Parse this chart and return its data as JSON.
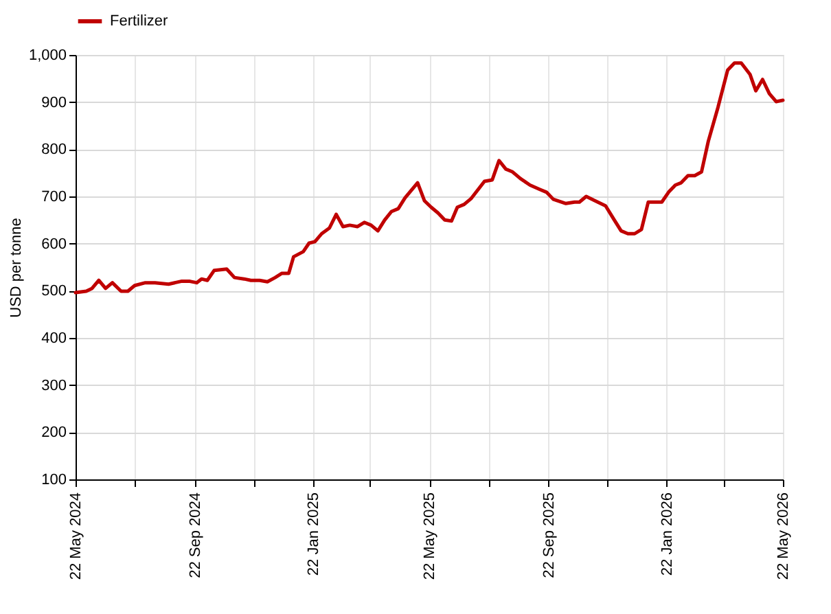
{
  "chart_data": {
    "type": "line",
    "ylabel": "USD per tonne",
    "legend": "top",
    "grid": true,
    "line_style": "solid",
    "marker": "none",
    "x": [
      "2024-05-22",
      "2024-06-02",
      "2024-06-08",
      "2024-06-15",
      "2024-06-22",
      "2024-06-29",
      "2024-07-08",
      "2024-07-15",
      "2024-07-22",
      "2024-08-02",
      "2024-08-12",
      "2024-08-26",
      "2024-09-08",
      "2024-09-17",
      "2024-09-24",
      "2024-09-29",
      "2024-10-05",
      "2024-10-12",
      "2024-10-25",
      "2024-11-02",
      "2024-11-12",
      "2024-11-19",
      "2024-11-28",
      "2024-12-06",
      "2024-12-14",
      "2024-12-21",
      "2024-12-28",
      "2025-01-02",
      "2025-01-12",
      "2025-01-18",
      "2025-01-24",
      "2025-01-31",
      "2025-02-08",
      "2025-02-15",
      "2025-02-22",
      "2025-03-01",
      "2025-03-09",
      "2025-03-16",
      "2025-03-23",
      "2025-03-30",
      "2025-04-06",
      "2025-04-13",
      "2025-04-20",
      "2025-04-27",
      "2025-05-10",
      "2025-05-17",
      "2025-05-24",
      "2025-05-31",
      "2025-06-07",
      "2025-06-14",
      "2025-06-20",
      "2025-06-27",
      "2025-07-04",
      "2025-07-18",
      "2025-07-26",
      "2025-08-02",
      "2025-08-09",
      "2025-08-16",
      "2025-08-24",
      "2025-09-03",
      "2025-09-13",
      "2025-09-20",
      "2025-09-27",
      "2025-10-10",
      "2025-10-19",
      "2025-10-24",
      "2025-10-31",
      "2025-11-09",
      "2025-11-20",
      "2025-11-29",
      "2025-12-06",
      "2025-12-13",
      "2025-12-20",
      "2025-12-27",
      "2026-01-03",
      "2026-01-10",
      "2026-01-17",
      "2026-01-24",
      "2026-01-31",
      "2026-02-06",
      "2026-02-13",
      "2026-02-20",
      "2026-02-27",
      "2026-03-06",
      "2026-03-16",
      "2026-03-26",
      "2026-04-02",
      "2026-04-09",
      "2026-04-18",
      "2026-04-24",
      "2026-05-01",
      "2026-05-08",
      "2026-05-15",
      "2026-05-22"
    ],
    "series": [
      {
        "name": "Fertilizer",
        "color": "#c00000",
        "values": [
          496,
          499,
          505,
          522,
          505,
          517,
          499,
          499,
          511,
          517,
          517,
          514,
          520,
          520,
          517,
          525,
          522,
          543,
          546,
          528,
          525,
          522,
          522,
          519,
          528,
          537,
          537,
          572,
          583,
          601,
          604,
          621,
          633,
          662,
          636,
          639,
          636,
          645,
          639,
          627,
          650,
          668,
          674,
          697,
          729,
          691,
          677,
          665,
          650,
          648,
          677,
          683,
          695,
          732,
          735,
          776,
          758,
          752,
          738,
          724,
          715,
          709,
          694,
          685,
          688,
          688,
          700,
          691,
          680,
          650,
          627,
          621,
          621,
          630,
          688,
          688,
          688,
          709,
          724,
          729,
          744,
          744,
          752,
          817,
          889,
          968,
          983,
          983,
          959,
          924,
          948,
          918,
          901,
          904
        ]
      }
    ],
    "xlim": [
      "2024-05-22",
      "2026-05-22"
    ],
    "xticks": [
      {
        "value": "2024-05-22",
        "label": "22 May 2024"
      },
      {
        "value": "2024-07-22",
        "label": null
      },
      {
        "value": "2024-09-22",
        "label": "22 Sep 2024"
      },
      {
        "value": "2024-11-22",
        "label": null
      },
      {
        "value": "2025-01-22",
        "label": "22 Jan 2025"
      },
      {
        "value": "2025-03-22",
        "label": null
      },
      {
        "value": "2025-05-22",
        "label": "22 May 2025"
      },
      {
        "value": "2025-07-22",
        "label": null
      },
      {
        "value": "2025-09-22",
        "label": "22 Sep 2025"
      },
      {
        "value": "2025-11-22",
        "label": null
      },
      {
        "value": "2026-01-22",
        "label": "22 Jan 2026"
      },
      {
        "value": "2026-03-22",
        "label": null
      },
      {
        "value": "2026-05-22",
        "label": "22 May 2026"
      }
    ],
    "ylim": [
      100,
      1000
    ],
    "yticks": [
      100,
      200,
      300,
      400,
      500,
      600,
      700,
      800,
      900,
      {
        "value": 1000,
        "label": "1,000"
      }
    ]
  }
}
